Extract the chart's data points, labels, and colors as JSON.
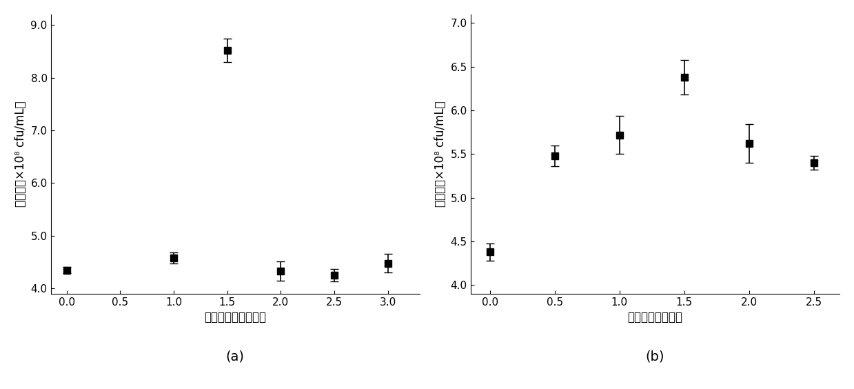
{
  "chart_a": {
    "x": [
      0.0,
      1.0,
      1.5,
      2.0,
      2.5,
      3.0
    ],
    "y": [
      4.35,
      4.58,
      8.52,
      4.33,
      4.25,
      4.48
    ],
    "yerr": [
      0.06,
      0.1,
      0.22,
      0.18,
      0.12,
      0.18
    ],
    "xlabel": "细菌学蛋白胨（倍）",
    "ylabel_top": "（×10⁸ cfu/mL）",
    "ylabel_bot": "活菌数",
    "label": "(a)",
    "xlim": [
      -0.15,
      3.3
    ],
    "ylim": [
      3.9,
      9.2
    ],
    "xticks": [
      0.0,
      0.5,
      1.0,
      1.5,
      2.0,
      2.5,
      3.0
    ],
    "yticks": [
      4.0,
      5.0,
      6.0,
      7.0,
      8.0,
      9.0
    ]
  },
  "chart_b": {
    "x": [
      0.0,
      0.5,
      1.0,
      1.5,
      2.0,
      2.5
    ],
    "y": [
      4.38,
      5.48,
      5.72,
      6.38,
      5.62,
      5.4
    ],
    "yerr": [
      0.1,
      0.12,
      0.22,
      0.2,
      0.22,
      0.08
    ],
    "xlabel": "大豆蛋白胨（倍）",
    "ylabel_top": "（×10⁸ cfu/mL）",
    "ylabel_bot": "活菌数",
    "label": "(b)",
    "xlim": [
      -0.15,
      2.7
    ],
    "ylim": [
      3.9,
      7.1
    ],
    "xticks": [
      0.0,
      0.5,
      1.0,
      1.5,
      2.0,
      2.5
    ],
    "yticks": [
      4.0,
      4.5,
      5.0,
      5.5,
      6.0,
      6.5,
      7.0
    ]
  },
  "marker": "s",
  "markersize": 7,
  "linewidth": 1.5,
  "color": "black",
  "capsize": 4,
  "elinewidth": 1.2,
  "ylabel_fontsize": 12,
  "xlabel_fontsize": 12,
  "tick_fontsize": 11,
  "label_fontsize": 14,
  "background_color": "#ffffff"
}
